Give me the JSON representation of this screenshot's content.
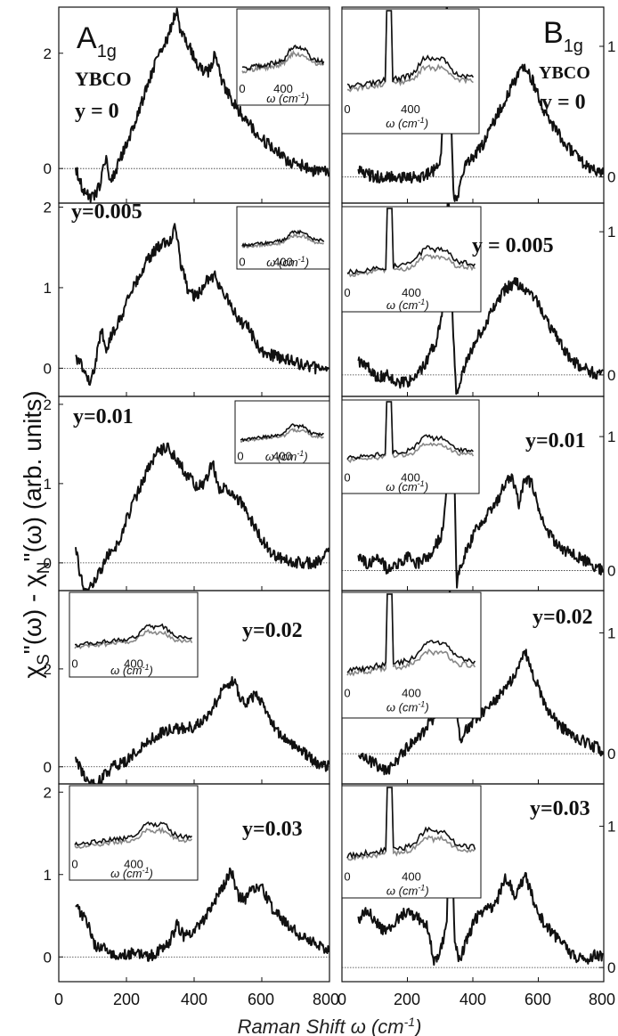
{
  "figure": {
    "ylabel": "χS\"(ω) - χN\"(ω) (arb. units)",
    "ylabel_main": "χ",
    "ylabel_sub1": "S",
    "ylabel_mid": "\"(ω) - χ",
    "ylabel_sub2": "N",
    "ylabel_end": "\"(ω) (arb. units)",
    "xlabel": "Raman Shift ω (cm⁻¹)",
    "xlabel_main": "Raman Shift ω (cm",
    "xlabel_sup": "-1",
    "xlabel_end": ")",
    "x_ticks": [
      "0",
      "200",
      "400",
      "600",
      "800"
    ]
  },
  "columns": [
    {
      "symbol": "A",
      "sub": "1g",
      "material": "YBCO"
    },
    {
      "symbol": "B",
      "sub": "1g",
      "material": "YBCO"
    }
  ],
  "inset_xlabel": {
    "main": "ω (cm",
    "sup": "-1",
    "end": ")"
  },
  "chart_data": [
    {
      "type": "line",
      "panel": "A1g y = 0",
      "label": "y = 0",
      "xlim": [
        0,
        800
      ],
      "ylim": [
        -0.6,
        2.8
      ],
      "ytick_values": [
        0,
        2
      ],
      "ytick_labels": [
        "0",
        "2"
      ],
      "series": [
        {
          "x": [
            50,
            60,
            75,
            90,
            110,
            125,
            140,
            150,
            165,
            180,
            200,
            230,
            260,
            290,
            320,
            340,
            350,
            360,
            380,
            410,
            440,
            460,
            470,
            490,
            520,
            560,
            600,
            640,
            680,
            720,
            760,
            800
          ],
          "y": [
            0.0,
            -0.2,
            -0.4,
            -0.5,
            -0.45,
            -0.2,
            0.25,
            -0.15,
            -0.1,
            0.15,
            0.4,
            0.9,
            1.4,
            1.9,
            2.25,
            2.6,
            2.7,
            2.4,
            2.2,
            1.75,
            1.65,
            1.95,
            1.75,
            1.4,
            1.1,
            0.8,
            0.5,
            0.35,
            0.1,
            0.05,
            -0.05,
            -0.05
          ]
        }
      ],
      "inset": {
        "x_ticks": [
          "0",
          "400"
        ]
      }
    },
    {
      "type": "line",
      "panel": "A1g y=0.005",
      "label": "y=0.005",
      "xlim": [
        0,
        800
      ],
      "ylim": [
        -0.35,
        2.05
      ],
      "ytick_values": [
        0,
        1,
        2
      ],
      "ytick_labels": [
        "0",
        "1",
        "2"
      ],
      "series": [
        {
          "x": [
            50,
            65,
            80,
            95,
            110,
            125,
            140,
            160,
            190,
            220,
            250,
            280,
            310,
            330,
            345,
            360,
            380,
            400,
            420,
            440,
            460,
            480,
            500,
            530,
            560,
            600,
            640,
            680,
            720,
            760,
            800
          ],
          "y": [
            0.15,
            0.05,
            -0.1,
            -0.2,
            0.1,
            0.5,
            0.25,
            0.45,
            0.7,
            1.0,
            1.25,
            1.45,
            1.55,
            1.6,
            1.8,
            1.3,
            1.0,
            0.9,
            0.95,
            1.1,
            1.15,
            0.95,
            0.85,
            0.6,
            0.5,
            0.2,
            0.15,
            0.1,
            0.05,
            0.0,
            0.0
          ]
        }
      ],
      "inset": {
        "x_ticks": [
          "0",
          "400"
        ]
      }
    },
    {
      "type": "line",
      "panel": "A1g y=0.01",
      "label": "y=0.01",
      "xlim": [
        0,
        800
      ],
      "ylim": [
        -0.35,
        2.1
      ],
      "ytick_values": [
        0,
        1,
        2
      ],
      "ytick_labels": [
        "0",
        "1",
        "2"
      ],
      "series": [
        {
          "x": [
            50,
            60,
            75,
            90,
            110,
            130,
            145,
            160,
            180,
            200,
            230,
            260,
            290,
            320,
            350,
            380,
            410,
            440,
            455,
            470,
            490,
            520,
            550,
            580,
            600,
            630,
            670,
            710,
            760,
            800
          ],
          "y": [
            0.25,
            -0.1,
            -0.35,
            -0.35,
            -0.2,
            -0.05,
            0.1,
            0.15,
            0.25,
            0.55,
            0.85,
            1.15,
            1.4,
            1.45,
            1.3,
            1.1,
            0.95,
            1.05,
            1.3,
            0.95,
            0.95,
            0.85,
            0.7,
            0.45,
            0.3,
            0.1,
            0.05,
            0.0,
            0.0,
            0.15
          ]
        }
      ],
      "inset": {
        "x_ticks": [
          "0",
          "400"
        ]
      }
    },
    {
      "type": "line",
      "panel": "A1g y=0.02",
      "label": "y=0.02",
      "xlim": [
        0,
        800
      ],
      "ylim": [
        -0.35,
        3.6
      ],
      "ytick_values": [
        0,
        2
      ],
      "ytick_labels": [
        "0",
        "2"
      ],
      "series": [
        {
          "x": [
            50,
            65,
            80,
            95,
            110,
            130,
            160,
            200,
            240,
            280,
            320,
            360,
            400,
            440,
            470,
            500,
            520,
            540,
            560,
            580,
            600,
            620,
            650,
            680,
            710,
            740,
            770,
            800
          ],
          "y": [
            0.1,
            -0.05,
            -0.25,
            -0.35,
            -0.35,
            -0.2,
            0.0,
            0.1,
            0.4,
            0.6,
            0.75,
            0.8,
            0.8,
            1.0,
            1.4,
            1.7,
            1.75,
            1.35,
            1.3,
            1.5,
            1.3,
            1.0,
            0.7,
            0.5,
            0.35,
            0.2,
            0.05,
            0.0
          ]
        }
      ],
      "inset": {
        "x_ticks": [
          "0",
          "400"
        ]
      }
    },
    {
      "type": "line",
      "panel": "A1g y=0.03",
      "label": "y=0.03",
      "xlim": [
        0,
        800
      ],
      "ylim": [
        -0.3,
        2.1
      ],
      "ytick_values": [
        0,
        1,
        2
      ],
      "ytick_labels": [
        "0",
        "1",
        "2"
      ],
      "series": [
        {
          "x": [
            50,
            70,
            90,
            110,
            130,
            150,
            180,
            210,
            240,
            270,
            300,
            330,
            350,
            370,
            400,
            430,
            460,
            490,
            510,
            530,
            550,
            570,
            600,
            630,
            660,
            700,
            740,
            780,
            800
          ],
          "y": [
            0.65,
            0.5,
            0.35,
            0.1,
            0.15,
            0.05,
            0.0,
            0.05,
            0.05,
            0.0,
            0.1,
            0.2,
            0.4,
            0.25,
            0.3,
            0.45,
            0.65,
            0.9,
            1.05,
            0.75,
            0.7,
            0.8,
            0.85,
            0.6,
            0.45,
            0.3,
            0.2,
            0.1,
            0.1
          ]
        }
      ],
      "inset": {
        "x_ticks": [
          "0",
          "400"
        ]
      }
    },
    {
      "type": "line",
      "panel": "B1g y = 0",
      "label": "y = 0",
      "xlim": [
        0,
        800
      ],
      "ylim": [
        -0.2,
        1.3
      ],
      "ytick_values": [
        0,
        1
      ],
      "ytick_labels": [
        "0",
        "1"
      ],
      "series": [
        {
          "x": [
            50,
            100,
            150,
            200,
            250,
            280,
            300,
            310,
            320,
            330,
            340,
            350,
            360,
            370,
            380,
            400,
            430,
            460,
            490,
            520,
            540,
            560,
            580,
            610,
            640,
            670,
            700,
            740,
            780,
            800
          ],
          "y": [
            0.05,
            0.0,
            0.0,
            0.0,
            0.0,
            0.05,
            0.1,
            0.5,
            1.4,
            0.8,
            -0.1,
            -0.2,
            -0.05,
            0.05,
            0.1,
            0.15,
            0.25,
            0.4,
            0.55,
            0.7,
            0.8,
            0.85,
            0.75,
            0.55,
            0.4,
            0.3,
            0.2,
            0.1,
            0.05,
            0.05
          ]
        }
      ],
      "inset": {
        "x_ticks": [
          "0",
          "400"
        ]
      }
    },
    {
      "type": "line",
      "panel": "B1g y=0.005",
      "label": "y = 0.005",
      "xlim": [
        0,
        800
      ],
      "ylim": [
        -0.15,
        1.2
      ],
      "ytick_values": [
        0,
        1
      ],
      "ytick_labels": [
        "0",
        "1"
      ],
      "series": [
        {
          "x": [
            50,
            80,
            110,
            140,
            170,
            200,
            230,
            260,
            290,
            310,
            325,
            340,
            350,
            360,
            380,
            410,
            440,
            470,
            500,
            530,
            560,
            590,
            620,
            660,
            700,
            740,
            780,
            800
          ],
          "y": [
            0.1,
            0.05,
            -0.02,
            0.0,
            -0.05,
            -0.05,
            0.0,
            0.1,
            0.25,
            0.5,
            1.3,
            0.3,
            -0.15,
            -0.05,
            0.1,
            0.25,
            0.35,
            0.5,
            0.6,
            0.65,
            0.6,
            0.55,
            0.4,
            0.25,
            0.1,
            0.05,
            0.0,
            0.0
          ]
        }
      ],
      "inset": {
        "x_ticks": [
          "0",
          "400"
        ]
      }
    },
    {
      "type": "line",
      "panel": "B1g y=0.01",
      "label": "y=0.01",
      "xlim": [
        0,
        800
      ],
      "ylim": [
        -0.15,
        1.3
      ],
      "ytick_values": [
        0,
        1
      ],
      "ytick_labels": [
        "0",
        "1"
      ],
      "series": [
        {
          "x": [
            50,
            80,
            110,
            140,
            170,
            200,
            230,
            260,
            290,
            310,
            325,
            340,
            350,
            360,
            380,
            410,
            440,
            470,
            500,
            520,
            540,
            560,
            580,
            610,
            640,
            680,
            720,
            760,
            800
          ],
          "y": [
            0.1,
            0.05,
            0.1,
            0.0,
            0.05,
            0.1,
            0.05,
            0.1,
            0.2,
            0.3,
            0.8,
            1.25,
            -0.1,
            0.0,
            0.15,
            0.3,
            0.4,
            0.5,
            0.65,
            0.7,
            0.5,
            0.7,
            0.65,
            0.4,
            0.25,
            0.15,
            0.1,
            0.05,
            0.0
          ]
        }
      ],
      "inset": {
        "x_ticks": [
          "0",
          "400"
        ]
      }
    },
    {
      "type": "line",
      "panel": "B1g y=0.02",
      "label": "y=0.02",
      "xlim": [
        0,
        800
      ],
      "ylim": [
        -0.25,
        1.35
      ],
      "ytick_values": [
        0,
        1
      ],
      "ytick_labels": [
        "0",
        "1"
      ],
      "series": [
        {
          "x": [
            50,
            80,
            110,
            140,
            170,
            200,
            240,
            280,
            310,
            330,
            345,
            360,
            380,
            410,
            440,
            470,
            500,
            530,
            560,
            580,
            600,
            630,
            660,
            700,
            740,
            780,
            800
          ],
          "y": [
            0.0,
            -0.05,
            -0.1,
            -0.15,
            -0.05,
            0.05,
            0.15,
            0.3,
            0.5,
            1.35,
            0.6,
            0.1,
            0.2,
            0.3,
            0.35,
            0.45,
            0.55,
            0.65,
            0.85,
            0.7,
            0.55,
            0.35,
            0.25,
            0.15,
            0.1,
            0.05,
            0.0
          ]
        }
      ],
      "inset": {
        "x_ticks": [
          "0",
          "400"
        ]
      }
    },
    {
      "type": "line",
      "panel": "B1g y=0.03",
      "label": "y=0.03",
      "xlim": [
        0,
        800
      ],
      "ylim": [
        -0.1,
        1.3
      ],
      "ytick_values": [
        0,
        1
      ],
      "ytick_labels": [
        "0",
        "1"
      ],
      "series": [
        {
          "x": [
            50,
            80,
            110,
            140,
            170,
            200,
            230,
            260,
            280,
            300,
            320,
            330,
            345,
            360,
            380,
            410,
            440,
            470,
            500,
            530,
            560,
            590,
            620,
            660,
            700,
            740,
            780,
            800
          ],
          "y": [
            0.35,
            0.4,
            0.3,
            0.25,
            0.35,
            0.4,
            0.35,
            0.3,
            0.05,
            0.1,
            0.3,
            1.3,
            0.15,
            0.05,
            0.2,
            0.35,
            0.4,
            0.45,
            0.65,
            0.5,
            0.65,
            0.45,
            0.3,
            0.2,
            0.1,
            0.05,
            0.1,
            0.05
          ]
        }
      ],
      "inset": {
        "x_ticks": [
          "0",
          "400"
        ]
      }
    }
  ]
}
